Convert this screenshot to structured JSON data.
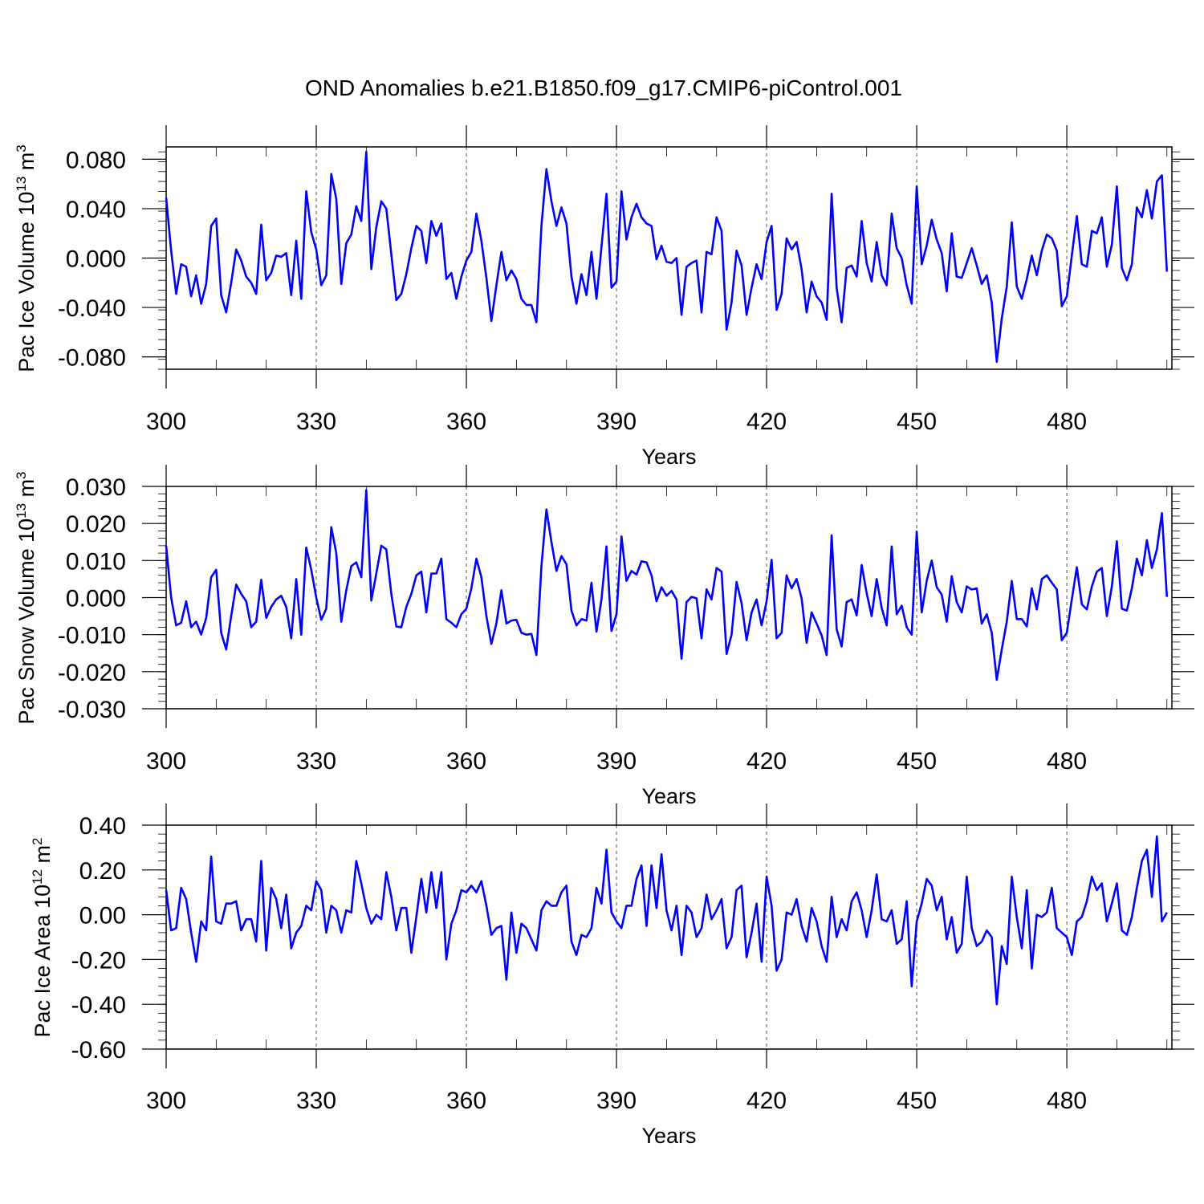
{
  "title": "OND Anomalies b.e21.B1850.f09_g17.CMIP6-piControl.001",
  "line_color": "#0000FF",
  "chart_data": [
    {
      "type": "line",
      "ylabel_main": "Pac Ice Volume 10",
      "ylabel_exp": "13",
      "ylabel_unit": " m",
      "ylabel_unit_exp": "3",
      "xlabel": "Years",
      "xlim": [
        300,
        501
      ],
      "ylim": [
        -0.09,
        0.09
      ],
      "xticks": [
        300,
        330,
        360,
        390,
        420,
        450,
        480
      ],
      "xtick_labels": [
        "300",
        "330",
        "360",
        "390",
        "420",
        "450",
        "480"
      ],
      "yticks": [
        0.08,
        0.04,
        0.0,
        -0.04,
        -0.08
      ],
      "ytick_labels": [
        "0.080",
        "0.040",
        "0.000",
        "-0.040",
        "-0.080"
      ],
      "x_start": 300,
      "values": [
        0.049,
        0.006,
        -0.029,
        -0.005,
        -0.007,
        -0.031,
        -0.014,
        -0.037,
        -0.021,
        0.026,
        0.032,
        -0.03,
        -0.044,
        -0.02,
        0.007,
        -0.002,
        -0.015,
        -0.02,
        -0.029,
        0.027,
        -0.018,
        -0.012,
        0.002,
        0.001,
        0.004,
        -0.03,
        0.014,
        -0.033,
        0.054,
        0.021,
        0.007,
        -0.022,
        -0.014,
        0.068,
        0.048,
        -0.021,
        0.012,
        0.019,
        0.042,
        0.03,
        0.086,
        -0.009,
        0.025,
        0.046,
        0.04,
        0.003,
        -0.034,
        -0.029,
        -0.013,
        0.008,
        0.026,
        0.022,
        -0.004,
        0.03,
        0.018,
        0.028,
        -0.017,
        -0.012,
        -0.033,
        -0.015,
        -0.002,
        0.005,
        0.036,
        0.014,
        -0.016,
        -0.051,
        -0.022,
        0.005,
        -0.018,
        -0.01,
        -0.017,
        -0.033,
        -0.038,
        -0.038,
        -0.052,
        0.026,
        0.072,
        0.046,
        0.026,
        0.041,
        0.028,
        -0.015,
        -0.037,
        -0.013,
        -0.03,
        0.005,
        -0.033,
        0.009,
        0.052,
        -0.024,
        -0.019,
        0.054,
        0.015,
        0.033,
        0.044,
        0.033,
        0.028,
        0.026,
        -0.001,
        0.01,
        -0.003,
        -0.004,
        0.0,
        -0.046,
        -0.007,
        -0.004,
        -0.002,
        -0.044,
        0.005,
        0.003,
        0.033,
        0.022,
        -0.058,
        -0.036,
        0.006,
        -0.006,
        -0.046,
        -0.024,
        -0.005,
        -0.017,
        0.013,
        0.026,
        -0.042,
        -0.029,
        0.016,
        0.007,
        0.013,
        -0.009,
        -0.044,
        -0.019,
        -0.031,
        -0.036,
        -0.05,
        0.052,
        -0.024,
        -0.052,
        -0.008,
        -0.006,
        -0.015,
        0.03,
        -0.004,
        -0.019,
        0.013,
        -0.014,
        -0.022,
        0.036,
        0.008,
        0.0,
        -0.022,
        -0.037,
        0.058,
        -0.005,
        0.01,
        0.031,
        0.015,
        0.004,
        -0.027,
        0.02,
        -0.015,
        -0.016,
        -0.004,
        0.008,
        -0.006,
        -0.021,
        -0.014,
        -0.036,
        -0.084,
        -0.049,
        -0.023,
        0.029,
        -0.023,
        -0.033,
        -0.017,
        0.002,
        -0.014,
        0.006,
        0.019,
        0.016,
        0.006,
        -0.039,
        -0.031,
        0.002,
        0.034,
        -0.005,
        -0.007,
        0.022,
        0.02,
        0.033,
        -0.007,
        0.011,
        0.058,
        -0.008,
        -0.018,
        -0.005,
        0.041,
        0.033,
        0.055,
        0.032,
        0.062,
        0.067,
        -0.011
      ]
    },
    {
      "type": "line",
      "ylabel_main": "Pac Snow Volume 10",
      "ylabel_exp": "13",
      "ylabel_unit": " m",
      "ylabel_unit_exp": "3",
      "xlabel": "Years",
      "xlim": [
        300,
        501
      ],
      "ylim": [
        -0.03,
        0.03
      ],
      "xticks": [
        300,
        330,
        360,
        390,
        420,
        450,
        480
      ],
      "xtick_labels": [
        "300",
        "330",
        "360",
        "390",
        "420",
        "450",
        "480"
      ],
      "yticks": [
        0.03,
        0.02,
        0.01,
        0.0,
        -0.01,
        -0.02,
        -0.03
      ],
      "ytick_labels": [
        "0.030",
        "0.020",
        "0.010",
        "0.000",
        "-0.010",
        "-0.020",
        "-0.030"
      ],
      "x_start": 300,
      "values": [
        0.014,
        0.0,
        -0.0075,
        -0.0068,
        -0.001,
        -0.008,
        -0.0065,
        -0.01,
        -0.0055,
        0.0055,
        0.0075,
        -0.0095,
        -0.014,
        -0.005,
        0.0035,
        0.001,
        -0.001,
        -0.008,
        -0.0065,
        0.0048,
        -0.0055,
        -0.0025,
        -0.0005,
        0.0005,
        -0.0025,
        -0.011,
        0.005,
        -0.01,
        0.0135,
        0.0075,
        0.0,
        -0.006,
        -0.003,
        0.019,
        0.012,
        -0.0065,
        0.002,
        0.0085,
        0.0095,
        0.0055,
        0.029,
        -0.0008,
        0.0065,
        0.014,
        0.013,
        0.001,
        -0.0078,
        -0.008,
        -0.0025,
        0.001,
        0.006,
        0.007,
        -0.004,
        0.0065,
        0.0065,
        0.0105,
        -0.0058,
        -0.0068,
        -0.008,
        -0.0045,
        -0.003,
        0.0025,
        0.0105,
        0.0055,
        -0.005,
        -0.0125,
        -0.007,
        0.002,
        -0.007,
        -0.0062,
        -0.006,
        -0.0095,
        -0.01,
        -0.0098,
        -0.0155,
        0.0085,
        0.0238,
        0.015,
        0.0072,
        0.0112,
        0.009,
        -0.0035,
        -0.0075,
        -0.0058,
        -0.0062,
        0.004,
        -0.0092,
        -0.0005,
        0.0138,
        -0.009,
        -0.0045,
        0.0165,
        0.0045,
        0.0072,
        0.0062,
        0.0098,
        0.0095,
        0.006,
        -0.001,
        0.0028,
        0.0005,
        0.0018,
        -0.0005,
        -0.0165,
        -0.0012,
        0.0002,
        -0.0002,
        -0.011,
        0.0022,
        -0.0005,
        0.008,
        0.007,
        -0.0152,
        -0.01,
        0.0042,
        -0.0015,
        -0.0115,
        -0.004,
        -0.0005,
        -0.0075,
        -0.001,
        0.0102,
        -0.011,
        -0.0095,
        0.006,
        0.0025,
        0.005,
        -0.0002,
        -0.0122,
        -0.004,
        -0.007,
        -0.0102,
        -0.0155,
        0.0168,
        -0.0085,
        -0.0132,
        -0.0012,
        -0.0005,
        -0.0048,
        0.0088,
        0.0012,
        -0.005,
        0.005,
        -0.0028,
        -0.0075,
        0.0138,
        -0.0045,
        -0.0022,
        -0.008,
        -0.01,
        0.0178,
        -0.004,
        0.0045,
        0.01,
        0.0028,
        0.0008,
        -0.0065,
        0.0058,
        -0.0012,
        -0.004,
        0.003,
        0.0022,
        0.0025,
        -0.007,
        -0.0045,
        -0.0095,
        -0.0222,
        -0.014,
        -0.0065,
        0.0045,
        -0.0058,
        -0.0058,
        -0.0078,
        0.0025,
        -0.0032,
        0.005,
        0.006,
        0.004,
        0.0022,
        -0.0115,
        -0.0095,
        -0.0005,
        0.0082,
        -0.0018,
        -0.0032,
        0.003,
        0.007,
        0.008,
        -0.005,
        0.003,
        0.0152,
        -0.003,
        -0.0035,
        0.0025,
        0.0105,
        0.006,
        0.0155,
        0.008,
        0.013,
        0.0228,
        0.0002
      ]
    },
    {
      "type": "line",
      "ylabel_main": "Pac Ice Area 10",
      "ylabel_exp": "12",
      "ylabel_unit": " m",
      "ylabel_unit_exp": "2",
      "xlabel": "Years",
      "xlim": [
        300,
        501
      ],
      "ylim": [
        -0.6,
        0.4
      ],
      "xticks": [
        300,
        330,
        360,
        390,
        420,
        450,
        480
      ],
      "xtick_labels": [
        "300",
        "330",
        "360",
        "390",
        "420",
        "450",
        "480"
      ],
      "yticks": [
        0.4,
        0.2,
        0.0,
        -0.2,
        -0.4,
        -0.6
      ],
      "ytick_labels": [
        "0.40",
        "0.20",
        "0.00",
        "-0.20",
        "-0.40",
        "-0.60"
      ],
      "x_start": 300,
      "values": [
        0.11,
        -0.07,
        -0.06,
        0.12,
        0.07,
        -0.08,
        -0.21,
        -0.03,
        -0.07,
        0.26,
        -0.03,
        -0.04,
        0.05,
        0.05,
        0.06,
        -0.07,
        -0.02,
        -0.02,
        -0.12,
        0.24,
        -0.16,
        0.12,
        0.07,
        -0.06,
        0.09,
        -0.15,
        -0.08,
        -0.05,
        0.04,
        0.02,
        0.15,
        0.11,
        -0.08,
        0.04,
        0.02,
        -0.08,
        0.02,
        0.01,
        0.24,
        0.14,
        0.03,
        -0.04,
        0.0,
        -0.02,
        0.19,
        0.08,
        -0.07,
        0.03,
        0.03,
        -0.17,
        -0.01,
        0.16,
        0.01,
        0.19,
        0.03,
        0.19,
        -0.2,
        -0.04,
        0.02,
        0.11,
        0.1,
        0.13,
        0.1,
        0.15,
        0.04,
        -0.09,
        -0.06,
        -0.05,
        -0.29,
        0.01,
        -0.17,
        -0.04,
        -0.06,
        -0.11,
        -0.16,
        0.02,
        0.06,
        0.04,
        0.04,
        0.1,
        0.13,
        -0.12,
        -0.18,
        -0.09,
        -0.1,
        -0.06,
        0.12,
        0.05,
        0.29,
        0.01,
        -0.03,
        -0.06,
        0.04,
        0.04,
        0.16,
        0.22,
        -0.05,
        0.22,
        0.03,
        0.27,
        0.02,
        -0.07,
        0.04,
        -0.18,
        0.04,
        0.01,
        -0.1,
        -0.06,
        0.09,
        -0.02,
        0.02,
        0.07,
        -0.15,
        -0.1,
        0.11,
        0.13,
        -0.19,
        -0.08,
        0.05,
        -0.21,
        0.17,
        0.04,
        -0.25,
        -0.2,
        0.01,
        0.0,
        0.07,
        -0.05,
        -0.12,
        0.03,
        -0.03,
        -0.14,
        -0.21,
        0.08,
        -0.1,
        -0.02,
        -0.07,
        0.06,
        0.1,
        0.02,
        -0.1,
        0.02,
        0.18,
        -0.02,
        -0.03,
        0.02,
        -0.13,
        -0.11,
        0.06,
        -0.32,
        -0.03,
        0.05,
        0.16,
        0.13,
        0.02,
        0.08,
        -0.11,
        -0.01,
        -0.17,
        -0.13,
        0.17,
        -0.06,
        -0.14,
        -0.12,
        -0.07,
        -0.1,
        -0.4,
        -0.14,
        -0.22,
        0.17,
        -0.01,
        -0.15,
        0.11,
        -0.24,
        0.0,
        -0.01,
        0.01,
        0.12,
        -0.06,
        -0.08,
        -0.1,
        -0.18,
        -0.03,
        -0.01,
        0.06,
        0.17,
        0.11,
        0.14,
        -0.03,
        0.05,
        0.14,
        -0.07,
        -0.09,
        -0.01,
        0.12,
        0.24,
        0.29,
        0.08,
        0.35,
        -0.03,
        0.01
      ]
    }
  ]
}
